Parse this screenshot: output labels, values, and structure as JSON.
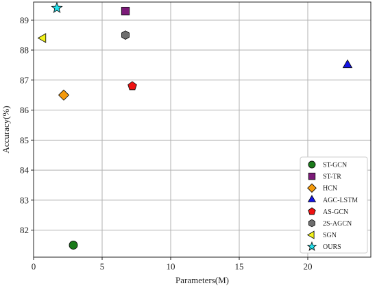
{
  "chart_data": {
    "type": "scatter",
    "xlabel": "Parameters(M)",
    "ylabel": "Accuracy(%)",
    "xlim": [
      0,
      24.6
    ],
    "ylim": [
      81.1,
      89.6
    ],
    "xticks": [
      "0",
      "5",
      "10",
      "15",
      "20"
    ],
    "yticks": [
      "82",
      "83",
      "84",
      "85",
      "86",
      "87",
      "88",
      "89"
    ],
    "grid": true,
    "legend_position": "lower-right",
    "series": [
      {
        "name": "ST-GCN",
        "x": 2.9,
        "y": 81.5,
        "marker": "circle",
        "color": "#1a7a1a"
      },
      {
        "name": "ST-TR",
        "x": 6.7,
        "y": 89.3,
        "marker": "square",
        "color": "#7b1a78"
      },
      {
        "name": "HCN",
        "x": 2.2,
        "y": 86.5,
        "marker": "diamond",
        "color": "#f59a0c"
      },
      {
        "name": "AGC-LSTM",
        "x": 22.9,
        "y": 87.5,
        "marker": "triangle-up",
        "color": "#1414e6"
      },
      {
        "name": "AS-GCN",
        "x": 7.2,
        "y": 86.8,
        "marker": "pentagon",
        "color": "#ee1111"
      },
      {
        "name": "2S-AGCN",
        "x": 6.7,
        "y": 88.5,
        "marker": "hexagon",
        "color": "#6e6e6e"
      },
      {
        "name": "SGN",
        "x": 0.7,
        "y": 88.4,
        "marker": "triangle-left",
        "color": "#f2f21a"
      },
      {
        "name": "OURS",
        "x": 1.7,
        "y": 89.4,
        "marker": "star",
        "color": "#22e2ee"
      }
    ]
  }
}
